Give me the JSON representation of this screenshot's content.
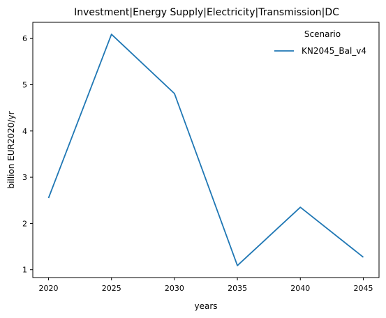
{
  "chart_data": {
    "type": "line",
    "title": "Investment|Energy Supply|Electricity|Transmission|DC",
    "xlabel": "years",
    "ylabel": "billion EUR2020/yr",
    "x": [
      2020,
      2025,
      2030,
      2035,
      2040,
      2045
    ],
    "xticks": [
      "2020",
      "2025",
      "2030",
      "2035",
      "2040",
      "2045"
    ],
    "yticks": [
      "1",
      "2",
      "3",
      "4",
      "5",
      "6"
    ],
    "xlim": [
      2018.75,
      2046.25
    ],
    "ylim": [
      0.83,
      6.35
    ],
    "grid": false,
    "legend": {
      "title": "Scenario",
      "placement": "top-right"
    },
    "series": [
      {
        "name": "KN2045_Bal_v4",
        "color": "#1f77b4",
        "values": [
          2.55,
          6.09,
          4.81,
          1.09,
          2.35,
          1.27
        ]
      }
    ]
  }
}
